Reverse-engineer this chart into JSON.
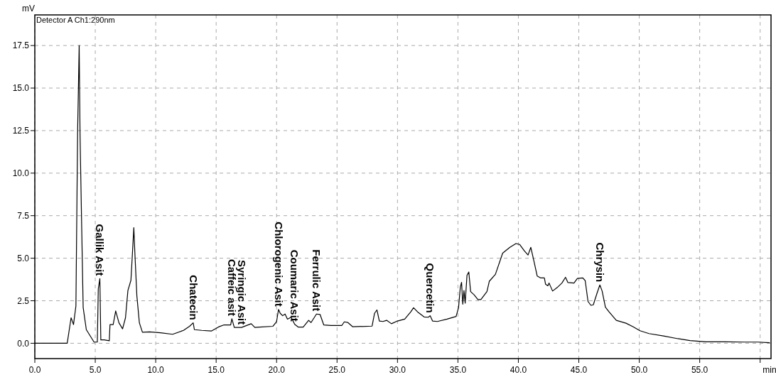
{
  "chart_data": {
    "type": "line",
    "xlabel": "min",
    "ylabel": "mV",
    "xlim": [
      0,
      60.9
    ],
    "ylim": [
      -0.9,
      19.3
    ],
    "xticks": [
      {
        "value": 0,
        "label": "0.0"
      },
      {
        "value": 5,
        "label": "5.0"
      },
      {
        "value": 10,
        "label": "10.0"
      },
      {
        "value": 15,
        "label": "15.0"
      },
      {
        "value": 20,
        "label": "20.0"
      },
      {
        "value": 25,
        "label": "25.0"
      },
      {
        "value": 30,
        "label": "30.0"
      },
      {
        "value": 35,
        "label": "35.0"
      },
      {
        "value": 40,
        "label": "40.0"
      },
      {
        "value": 45,
        "label": "45.0"
      },
      {
        "value": 50,
        "label": "50.0"
      },
      {
        "value": 55,
        "label": "55.0"
      },
      {
        "value": 60,
        "label": null
      }
    ],
    "yticks": [
      {
        "value": 0,
        "label": "0.0"
      },
      {
        "value": 2.5,
        "label": "2.5"
      },
      {
        "value": 5,
        "label": "5.0"
      },
      {
        "value": 7.5,
        "label": "7.5"
      },
      {
        "value": 10,
        "label": "10.0"
      },
      {
        "value": 12.5,
        "label": "12.5"
      },
      {
        "value": 15,
        "label": "15.0"
      },
      {
        "value": 17.5,
        "label": "17.5"
      }
    ],
    "grid": true,
    "marker": "none",
    "line_style": "solid",
    "series": [
      {
        "color": "#000000",
        "x": [
          0,
          2.6,
          2.68,
          3.0,
          3.2,
          3.4,
          3.54,
          3.67,
          3.74,
          3.88,
          4.0,
          4.26,
          4.9,
          5.17,
          5.25,
          5.38,
          5.46,
          5.74,
          6.16,
          6.22,
          6.48,
          6.69,
          6.96,
          7.26,
          7.5,
          7.7,
          7.95,
          8.06,
          8.19,
          8.27,
          8.44,
          8.65,
          8.9,
          9.5,
          10.4,
          11.4,
          12.3,
          12.8,
          13.1,
          13.2,
          13.8,
          14.6,
          15.2,
          15.65,
          16.2,
          16.3,
          16.5,
          17.1,
          17.9,
          18.2,
          18.6,
          19.7,
          20.0,
          20.16,
          20.3,
          20.5,
          20.7,
          20.9,
          21.2,
          21.5,
          21.8,
          22.2,
          22.65,
          22.85,
          23.3,
          23.6,
          23.9,
          24.5,
          25.4,
          25.6,
          25.9,
          26.3,
          27.9,
          28.1,
          28.3,
          28.5,
          28.8,
          29.1,
          29.5,
          30.0,
          30.6,
          31.1,
          31.33,
          31.7,
          32.2,
          32.55,
          32.7,
          32.9,
          33.3,
          34.1,
          34.85,
          35.05,
          35.2,
          35.3,
          35.4,
          35.5,
          35.6,
          35.75,
          35.9,
          36.05,
          36.35,
          36.65,
          36.9,
          37.4,
          37.6,
          38.1,
          38.7,
          39.3,
          39.8,
          40.1,
          40.5,
          40.8,
          41.03,
          41.27,
          41.56,
          41.85,
          42.15,
          42.25,
          42.44,
          42.54,
          42.83,
          43.2,
          43.6,
          43.9,
          44.1,
          44.6,
          44.88,
          45.33,
          45.53,
          45.76,
          46.0,
          46.2,
          46.5,
          46.74,
          46.93,
          47.2,
          47.5,
          48.1,
          48.9,
          49.5,
          50.06,
          50.8,
          52.0,
          53.2,
          54.2,
          55.5,
          57.1,
          58.7,
          59.8,
          60.8
        ],
        "values": [
          0,
          0,
          0,
          1.5,
          1.1,
          2.2,
          12.4,
          17.5,
          12.3,
          6.7,
          2.1,
          0.8,
          0.07,
          0.07,
          3.2,
          3.8,
          0.2,
          0.2,
          0.15,
          1.1,
          1.1,
          1.9,
          1.2,
          0.85,
          1.5,
          3.1,
          3.7,
          5.1,
          6.8,
          5.4,
          2.8,
          1.2,
          0.65,
          0.67,
          0.62,
          0.53,
          0.76,
          1.0,
          1.2,
          0.8,
          0.76,
          0.72,
          0.96,
          1.08,
          1.08,
          1.44,
          0.93,
          0.93,
          1.15,
          0.93,
          0.95,
          1.0,
          1.28,
          1.99,
          1.76,
          1.62,
          1.72,
          1.42,
          1.53,
          1.11,
          0.95,
          0.95,
          1.35,
          1.22,
          1.72,
          1.69,
          1.08,
          1.05,
          1.05,
          1.26,
          1.22,
          0.97,
          1.01,
          1.76,
          1.96,
          1.31,
          1.28,
          1.35,
          1.15,
          1.31,
          1.42,
          1.85,
          2.09,
          1.82,
          1.55,
          1.53,
          1.62,
          1.31,
          1.28,
          1.42,
          1.58,
          2.09,
          3.31,
          3.58,
          2.3,
          3.1,
          2.36,
          3.99,
          4.19,
          3.04,
          2.84,
          2.57,
          2.57,
          3.04,
          3.65,
          4.05,
          5.3,
          5.64,
          5.86,
          5.81,
          5.43,
          5.19,
          5.64,
          4.89,
          3.95,
          3.84,
          3.84,
          3.47,
          3.38,
          3.54,
          3.07,
          3.27,
          3.54,
          3.88,
          3.57,
          3.54,
          3.81,
          3.84,
          3.68,
          2.46,
          2.23,
          2.26,
          2.93,
          3.43,
          3.07,
          2.12,
          1.85,
          1.35,
          1.18,
          0.97,
          0.74,
          0.57,
          0.43,
          0.27,
          0.16,
          0.09,
          0.09,
          0.07,
          0.07,
          0.03
        ]
      }
    ],
    "annotations": [
      "Detector A Ch1:290nm",
      {
        "text": "Gallik Asit",
        "x": 5.38,
        "y": 3.8
      },
      {
        "text": "Chatecin",
        "x": 13.1,
        "y": 1.2
      },
      {
        "text": "Caffeic asit",
        "x": 16.3,
        "y": 1.44
      },
      {
        "text": "Syringic Asit",
        "x": 17.1,
        "y": 0.93
      },
      {
        "text": "Chlorogenic Asit",
        "x": 20.16,
        "y": 1.99
      },
      {
        "text": "Coumaric Asit",
        "x": 21.5,
        "y": 1.11
      },
      {
        "text": "Ferrulic Asit",
        "x": 23.3,
        "y": 1.72
      },
      {
        "text": "Quercetin",
        "x": 32.7,
        "y": 1.62
      },
      {
        "text": "Chrysin",
        "x": 46.74,
        "y": 3.43
      }
    ]
  }
}
